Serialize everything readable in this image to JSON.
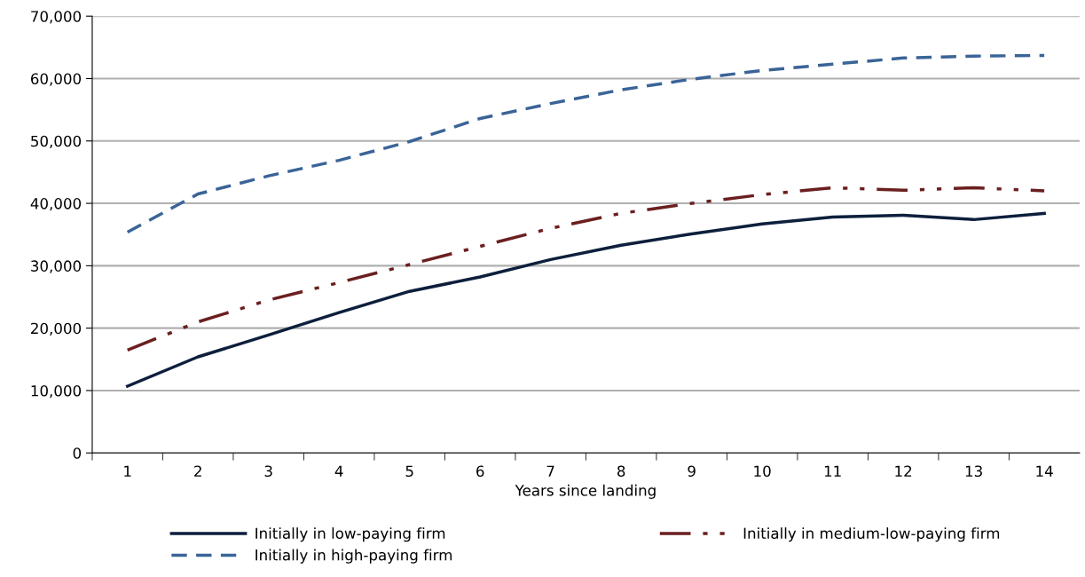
{
  "chart_data": {
    "type": "line",
    "xlabel": "Years since landing",
    "categories": [
      "1",
      "2",
      "3",
      "4",
      "5",
      "6",
      "7",
      "8",
      "9",
      "10",
      "11",
      "12",
      "13",
      "14"
    ],
    "ylim": [
      0,
      70000
    ],
    "yticks": [
      {
        "value": 0,
        "label": "0"
      },
      {
        "value": 10000,
        "label": "10,000"
      },
      {
        "value": 20000,
        "label": "20,000"
      },
      {
        "value": 30000,
        "label": "30,000"
      },
      {
        "value": 40000,
        "label": "40,000"
      },
      {
        "value": 50000,
        "label": "50,000"
      },
      {
        "value": 60000,
        "label": "60,000"
      },
      {
        "value": 70000,
        "label": "70,000"
      }
    ],
    "grid": "y",
    "legend": "bottom",
    "marker": "none",
    "series": [
      {
        "name": "Initially in low-paying firm",
        "color": "#0d1f3c",
        "line_style": "solid",
        "values": [
          10700,
          15400,
          18900,
          22500,
          25900,
          28200,
          31000,
          33300,
          35100,
          36700,
          37800,
          38100,
          37400,
          38400
        ]
      },
      {
        "name": "Initially in medium-low-paying firm",
        "color": "#6b1f1f",
        "line_style": "dashdotdot",
        "values": [
          16500,
          21000,
          24500,
          27300,
          30200,
          33100,
          36000,
          38400,
          40000,
          41400,
          42500,
          42100,
          42500,
          42000
        ]
      },
      {
        "name": "Initially in high-paying firm",
        "color": "#3a6497",
        "line_style": "dashed",
        "values": [
          35400,
          41500,
          44400,
          46900,
          49900,
          53600,
          56000,
          58200,
          59900,
          61300,
          62300,
          63300,
          63600,
          63700
        ]
      }
    ]
  }
}
